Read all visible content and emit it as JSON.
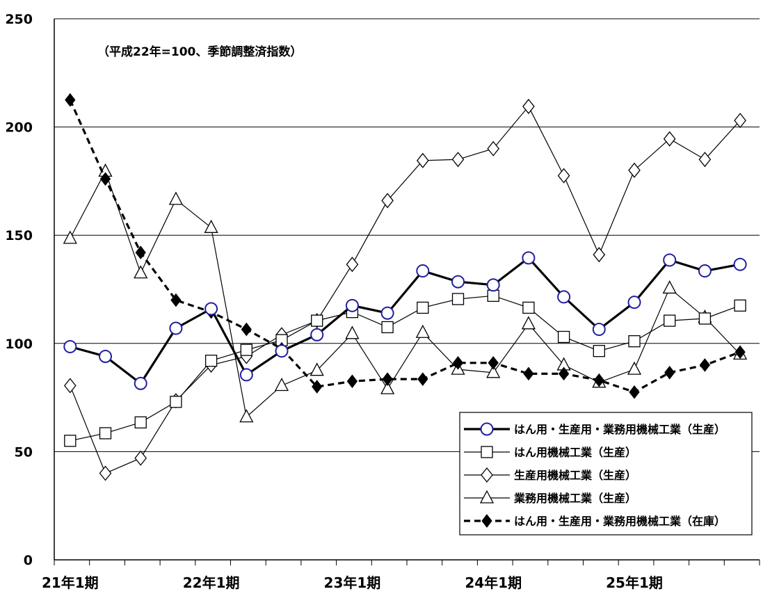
{
  "chart_data": {
    "type": "line",
    "title": "",
    "annotation": "（平成22年=100、季節調整済指数）",
    "xlabel": "",
    "ylabel": "",
    "ylim": [
      0,
      250
    ],
    "y_ticks": [
      0,
      50,
      100,
      150,
      200,
      250
    ],
    "grid": "horizontal",
    "x_tick_labels": [
      "21年1期",
      "22年1期",
      "23年1期",
      "24年1期",
      "25年1期"
    ],
    "legend_position": "bottom-right",
    "x": [
      "21年1期",
      "21年2期",
      "21年3期",
      "21年4期",
      "22年1期",
      "22年2期",
      "22年3期",
      "22年4期",
      "23年1期",
      "23年2期",
      "23年3期",
      "23年4期",
      "24年1期",
      "24年2期",
      "24年3期",
      "24年4期",
      "25年1期",
      "25年2期",
      "25年3期",
      "25年4期"
    ],
    "series": [
      {
        "name": "はん用・生産用・業務用機械工業（生産）",
        "color": "#1f1fa0",
        "marker": "circle",
        "line": "thick-solid",
        "values": [
          98.5,
          94,
          81.5,
          107,
          116,
          85.5,
          96.5,
          104,
          117.5,
          114,
          133.5,
          128.5,
          127,
          139.5,
          121.5,
          106.5,
          119,
          138.5,
          133.5,
          136.5
        ]
      },
      {
        "name": "はん用機械工業（生産）",
        "color": "#000000",
        "marker": "square",
        "line": "thin-solid",
        "values": [
          55,
          58.5,
          63.5,
          73,
          92,
          97,
          101.5,
          110.5,
          114.5,
          107.5,
          116.5,
          120.5,
          122,
          116.5,
          103,
          96.5,
          101,
          110.5,
          111.5,
          117.5
        ]
      },
      {
        "name": "生産用機械工業（生産）",
        "color": "#000000",
        "marker": "diamond-open",
        "line": "thin-solid",
        "values": [
          80.5,
          40,
          47,
          73.5,
          90,
          94,
          104,
          110.5,
          136.5,
          166,
          184.5,
          185,
          190,
          209.5,
          177.5,
          141,
          180,
          194.5,
          185,
          203
        ]
      },
      {
        "name": "業務用機械工業（生産）",
        "color": "#000000",
        "marker": "triangle",
        "line": "thin-solid",
        "values": [
          148.5,
          179.5,
          132.5,
          166.5,
          153.5,
          66,
          80.5,
          87.5,
          104.5,
          79,
          105,
          88,
          86.5,
          109,
          90,
          82,
          88,
          125.5,
          112,
          95
        ]
      },
      {
        "name": "はん用・生産用・業務用機械工業（在庫）",
        "color": "#000000",
        "marker": "diamond-filled",
        "line": "thick-dashed",
        "values": [
          212.5,
          176,
          142,
          120,
          114.5,
          106.5,
          97.5,
          80,
          82.5,
          83.5,
          83.5,
          91,
          91,
          86,
          86,
          83,
          77.5,
          86.5,
          90,
          96
        ]
      }
    ]
  }
}
